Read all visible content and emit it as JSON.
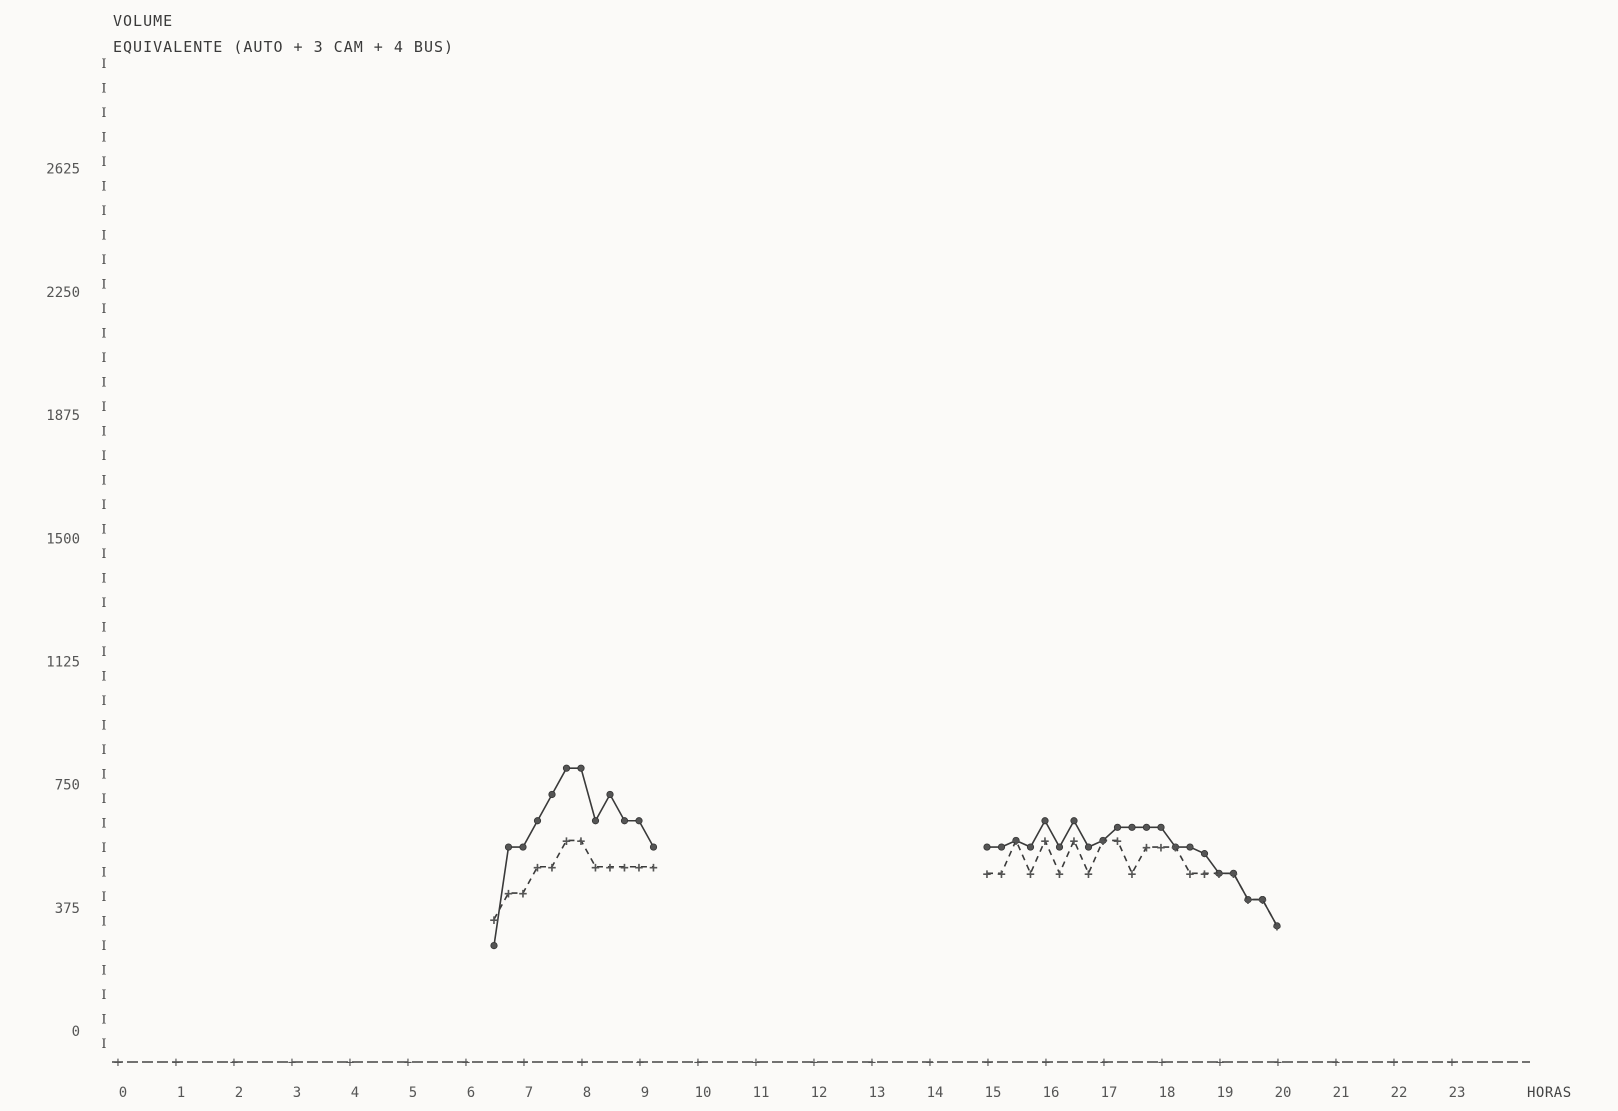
{
  "chart_data": {
    "type": "line",
    "title_line1": "VOLUME",
    "title_line2": "EQUIVALENTE (AUTO + 3 CAM + 4 BUS)",
    "xlabel": "HORAS",
    "ylabel": "",
    "xlim": [
      0,
      24
    ],
    "ylim": [
      0,
      2800
    ],
    "y_ticks": [
      0,
      375,
      750,
      1125,
      1500,
      1875,
      2250,
      2625
    ],
    "y_tick_labels": [
      "0",
      "375",
      "750",
      "1125",
      "1500",
      "1875",
      "2250",
      "2625"
    ],
    "x_ticks": [
      0,
      1,
      2,
      3,
      4,
      5,
      6,
      7,
      8,
      9,
      10,
      11,
      12,
      13,
      14,
      15,
      16,
      17,
      18,
      19,
      20,
      21,
      22,
      23
    ],
    "x_tick_labels": [
      "0",
      "1",
      "2",
      "3",
      "4",
      "5",
      "6",
      "7",
      "8",
      "9",
      "10",
      "11",
      "12",
      "13",
      "14",
      "15",
      "16",
      "17",
      "18",
      "19",
      "20",
      "21",
      "22",
      "23"
    ],
    "grid": false,
    "series": [
      {
        "marker": "o",
        "line": "solid",
        "segments": [
          {
            "x": [
              6.5,
              6.75,
              7.0,
              7.25,
              7.5,
              7.75,
              8.0,
              8.25,
              8.5,
              8.75,
              9.0,
              9.25
            ],
            "y": [
              260,
              560,
              560,
              640,
              720,
              800,
              800,
              640,
              720,
              640,
              640,
              560
            ]
          },
          {
            "x": [
              15.0,
              15.25,
              15.5,
              15.75,
              16.0,
              16.25,
              16.5,
              16.75,
              17.0,
              17.25,
              17.5,
              17.75,
              18.0,
              18.25,
              18.5,
              18.75,
              19.0,
              19.25,
              19.5,
              19.75
            ],
            "y": [
              560,
              560,
              580,
              560,
              640,
              560,
              640,
              560,
              580,
              620,
              620,
              620,
              620,
              560,
              560,
              540,
              480,
              480,
              400,
              400
            ]
          },
          {
            "x": [
              19.75,
              20.0
            ],
            "y": [
              400,
              320
            ]
          }
        ]
      },
      {
        "marker": "+",
        "line": "dashed",
        "segments": [
          {
            "x": [
              6.5,
              6.75,
              7.0,
              7.25,
              7.5,
              7.75,
              8.0,
              8.25,
              8.5,
              8.75,
              9.0,
              9.25
            ],
            "y": [
              340,
              420,
              420,
              500,
              500,
              580,
              580,
              500,
              500,
              500,
              500,
              500
            ]
          },
          {
            "x": [
              15.0,
              15.25,
              15.5,
              15.75,
              16.0,
              16.25,
              16.5,
              16.75,
              17.0,
              17.25,
              17.5,
              17.75,
              18.0,
              18.25,
              18.5,
              18.75,
              19.0,
              19.25,
              19.5,
              19.75,
              20.0
            ],
            "y": [
              480,
              480,
              580,
              480,
              580,
              480,
              580,
              480,
              580,
              580,
              480,
              560,
              560,
              560,
              480,
              480,
              480,
              480,
              400,
              400,
              320
            ]
          }
        ]
      }
    ]
  }
}
